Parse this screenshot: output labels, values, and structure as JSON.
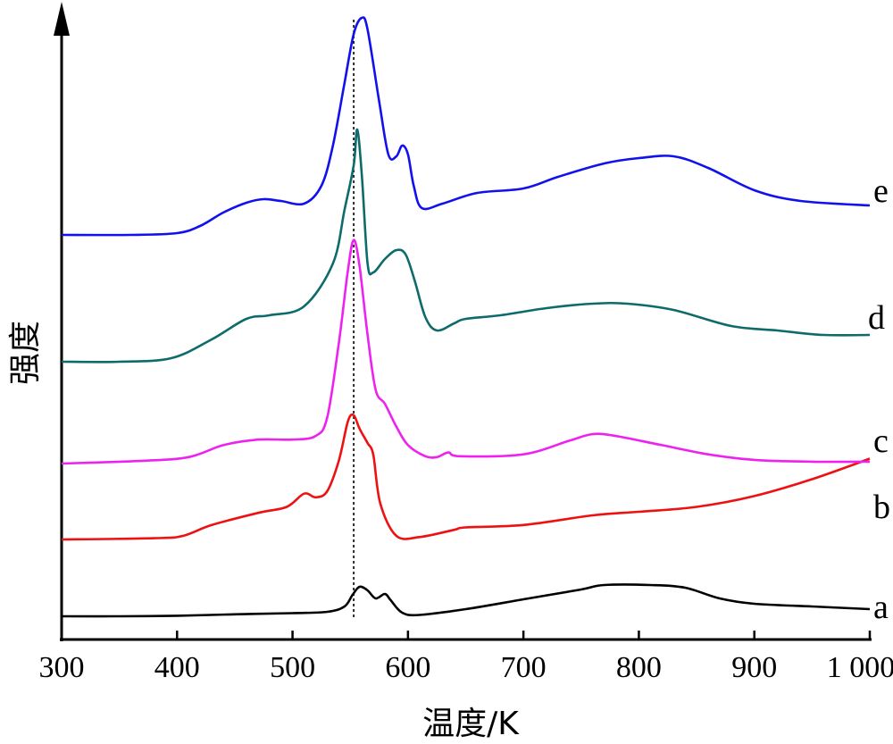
{
  "chart_data": {
    "type": "line",
    "xlabel": "温度/K",
    "ylabel": "强度",
    "xlim": [
      300,
      1000
    ],
    "xticks": [
      300,
      400,
      500,
      600,
      700,
      800,
      900,
      1000
    ],
    "xtick_labels": [
      "300",
      "400",
      "500",
      "600",
      "700",
      "800",
      "900",
      "1 000"
    ],
    "grid": false,
    "reference_line_x": 553,
    "series": [
      {
        "name": "a",
        "color": "#000000",
        "points": [
          [
            300,
            0.0
          ],
          [
            350,
            0.0
          ],
          [
            400,
            0.6
          ],
          [
            450,
            2.2
          ],
          [
            500,
            3.5
          ],
          [
            530,
            5.0
          ],
          [
            545,
            11
          ],
          [
            552,
            24
          ],
          [
            558,
            33
          ],
          [
            565,
            29
          ],
          [
            572,
            20
          ],
          [
            580,
            25
          ],
          [
            585,
            18
          ],
          [
            595,
            4
          ],
          [
            610,
            1.5
          ],
          [
            650,
            8
          ],
          [
            700,
            19
          ],
          [
            750,
            30
          ],
          [
            770,
            35
          ],
          [
            810,
            35
          ],
          [
            840,
            32
          ],
          [
            870,
            20
          ],
          [
            900,
            14
          ],
          [
            950,
            11
          ],
          [
            1000,
            8
          ]
        ]
      },
      {
        "name": "b",
        "color": "#ee1111",
        "points": [
          [
            300,
            0
          ],
          [
            380,
            1
          ],
          [
            405,
            3
          ],
          [
            430,
            12
          ],
          [
            470,
            22
          ],
          [
            495,
            27
          ],
          [
            510,
            38
          ],
          [
            520,
            35
          ],
          [
            530,
            40
          ],
          [
            540,
            65
          ],
          [
            548,
            98
          ],
          [
            553,
            103
          ],
          [
            558,
            92
          ],
          [
            565,
            80
          ],
          [
            570,
            70
          ],
          [
            576,
            30
          ],
          [
            590,
            3
          ],
          [
            610,
            2
          ],
          [
            640,
            8
          ],
          [
            650,
            10
          ],
          [
            700,
            12
          ],
          [
            760,
            20
          ],
          [
            800,
            23
          ],
          [
            850,
            27
          ],
          [
            900,
            36
          ],
          [
            950,
            50
          ],
          [
            1000,
            67
          ]
        ]
      },
      {
        "name": "c",
        "color": "#ee22ee",
        "points": [
          [
            300,
            0
          ],
          [
            370,
            3
          ],
          [
            410,
            7
          ],
          [
            440,
            20
          ],
          [
            470,
            26
          ],
          [
            500,
            26
          ],
          [
            520,
            30
          ],
          [
            530,
            50
          ],
          [
            540,
            130
          ],
          [
            548,
            210
          ],
          [
            553,
            243
          ],
          [
            558,
            215
          ],
          [
            565,
            140
          ],
          [
            572,
            80
          ],
          [
            580,
            65
          ],
          [
            590,
            40
          ],
          [
            600,
            20
          ],
          [
            615,
            8
          ],
          [
            625,
            7
          ],
          [
            635,
            12
          ],
          [
            645,
            8
          ],
          [
            700,
            10
          ],
          [
            740,
            25
          ],
          [
            760,
            32
          ],
          [
            780,
            30
          ],
          [
            820,
            20
          ],
          [
            860,
            10
          ],
          [
            900,
            4
          ],
          [
            950,
            2
          ],
          [
            1000,
            2
          ]
        ]
      },
      {
        "name": "d",
        "color": "#0e6b6b",
        "points": [
          [
            300,
            0
          ],
          [
            350,
            0
          ],
          [
            395,
            4
          ],
          [
            430,
            25
          ],
          [
            460,
            48
          ],
          [
            480,
            52
          ],
          [
            510,
            62
          ],
          [
            535,
            110
          ],
          [
            545,
            170
          ],
          [
            553,
            220
          ],
          [
            556,
            260
          ],
          [
            560,
            210
          ],
          [
            565,
            110
          ],
          [
            570,
            100
          ],
          [
            580,
            115
          ],
          [
            590,
            125
          ],
          [
            598,
            120
          ],
          [
            606,
            90
          ],
          [
            615,
            50
          ],
          [
            625,
            35
          ],
          [
            640,
            43
          ],
          [
            650,
            48
          ],
          [
            680,
            52
          ],
          [
            720,
            60
          ],
          [
            760,
            65
          ],
          [
            790,
            65
          ],
          [
            830,
            58
          ],
          [
            880,
            40
          ],
          [
            920,
            35
          ],
          [
            960,
            30
          ],
          [
            1000,
            30
          ]
        ]
      },
      {
        "name": "e",
        "color": "#1111ee",
        "points": [
          [
            300,
            0
          ],
          [
            360,
            0
          ],
          [
            400,
            2
          ],
          [
            420,
            10
          ],
          [
            440,
            25
          ],
          [
            460,
            36
          ],
          [
            475,
            40
          ],
          [
            490,
            38
          ],
          [
            510,
            35
          ],
          [
            525,
            55
          ],
          [
            535,
            100
          ],
          [
            545,
            170
          ],
          [
            553,
            225
          ],
          [
            560,
            243
          ],
          [
            565,
            230
          ],
          [
            575,
            150
          ],
          [
            583,
            90
          ],
          [
            590,
            88
          ],
          [
            595,
            100
          ],
          [
            600,
            90
          ],
          [
            605,
            55
          ],
          [
            612,
            30
          ],
          [
            630,
            35
          ],
          [
            660,
            47
          ],
          [
            700,
            52
          ],
          [
            730,
            65
          ],
          [
            770,
            80
          ],
          [
            800,
            86
          ],
          [
            830,
            88
          ],
          [
            860,
            75
          ],
          [
            900,
            50
          ],
          [
            940,
            38
          ],
          [
            1000,
            33
          ]
        ]
      }
    ]
  }
}
